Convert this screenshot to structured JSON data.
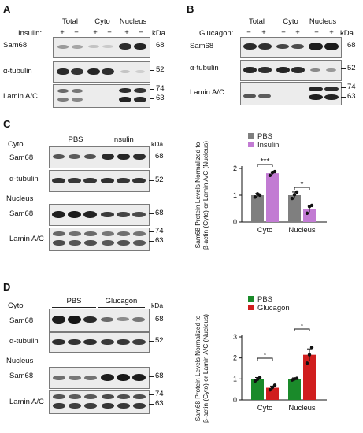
{
  "panels": {
    "A": {
      "letter": "A",
      "groups": [
        "Total",
        "Cyto",
        "Nucleus"
      ],
      "treatment_label": "Insulin:",
      "lane_signs": [
        "+",
        "−",
        "+",
        "−",
        "+",
        "−"
      ],
      "rows": [
        "Sam68",
        "α-tubulin",
        "Lamin A/C"
      ],
      "kda": "kDa",
      "markers": [
        "68",
        "52",
        "74",
        "63"
      ]
    },
    "B": {
      "letter": "B",
      "groups": [
        "Total",
        "Cyto",
        "Nucleus"
      ],
      "treatment_label": "Glucagon:",
      "lane_signs": [
        "−",
        "+",
        "−",
        "+",
        "−",
        "+"
      ],
      "rows": [
        "Sam68",
        "α-tubulin",
        "Lamin A/C"
      ],
      "kda": "kDa",
      "markers": [
        "68",
        "52",
        "74",
        "63"
      ]
    },
    "C": {
      "letter": "C",
      "fraction_cyto": "Cyto",
      "fraction_nucleus": "Nucleus",
      "groups": [
        "PBS",
        "Insulin"
      ],
      "rows_cyto": [
        "Sam68",
        "α-tubulin"
      ],
      "rows_nucleus": [
        "Sam68",
        "Lamin A/C"
      ],
      "kda": "kDa",
      "markers": [
        "68",
        "52",
        "68",
        "74",
        "63"
      ]
    },
    "D": {
      "letter": "D",
      "fraction_cyto": "Cyto",
      "fraction_nucleus": "Nucleus",
      "groups": [
        "PBS",
        "Glucagon"
      ],
      "rows_cyto": [
        "Sam68",
        "α-tubulin"
      ],
      "rows_nucleus": [
        "Sam68",
        "Lamin A/C"
      ],
      "kda": "kDa",
      "markers": [
        "68",
        "52",
        "68",
        "74",
        "63"
      ]
    }
  },
  "chart_data": [
    {
      "panel": "C",
      "type": "bar",
      "categories": [
        "Cyto",
        "Nucleus"
      ],
      "series": [
        {
          "name": "PBS",
          "color": "#7f7f7f",
          "values": [
            1.0,
            1.0
          ],
          "errors": [
            0.06,
            0.12
          ],
          "points": [
            [
              0.93,
              1.05,
              1.0
            ],
            [
              0.88,
              1.02,
              1.12
            ]
          ]
        },
        {
          "name": "Insulin",
          "color": "#c27bd3",
          "values": [
            1.82,
            0.5
          ],
          "errors": [
            0.05,
            0.13
          ],
          "points": [
            [
              1.74,
              1.85,
              1.88
            ],
            [
              0.33,
              0.58,
              0.62
            ]
          ]
        }
      ],
      "ylabel": "Sam68 Protein Levels Normalized to β-actin (Cyto) or Lamin A/C (Nucleus)",
      "ylabel_line1": "Sam68 Protein Levels Normalized to",
      "ylabel_line2": "β-actin (Cyto) or Lamin A/C (Nucleus)",
      "ylim": [
        0,
        2
      ],
      "yticks": [
        "0",
        "1",
        "2"
      ],
      "legend_position": "top",
      "significance": [
        "***",
        "*"
      ]
    },
    {
      "panel": "D",
      "type": "bar",
      "categories": [
        "Cyto",
        "Nucleus"
      ],
      "series": [
        {
          "name": "PBS",
          "color": "#1a8a2a",
          "values": [
            1.0,
            1.0
          ],
          "errors": [
            0.07,
            0.05
          ],
          "points": [
            [
              0.9,
              0.98,
              1.06
            ],
            [
              0.95,
              1.0,
              1.03
            ]
          ]
        },
        {
          "name": "Glucagon",
          "color": "#d01e1e",
          "values": [
            0.58,
            2.15
          ],
          "errors": [
            0.08,
            0.28
          ],
          "points": [
            [
              0.48,
              0.6,
              0.7
            ],
            [
              1.75,
              2.15,
              2.5
            ]
          ]
        }
      ],
      "ylabel": "Sam68 Protein Levels Normalized to β-actin (Cyto) or Lamin A/C (Nucleus)",
      "ylabel_line1": "Sam68 Protein Levels Normalized to",
      "ylabel_line2": "β-actin (Cyto) or Lamin A/C (Nucleus)",
      "ylim": [
        0,
        3
      ],
      "yticks": [
        "0",
        "1",
        "2",
        "3"
      ],
      "legend_position": "top",
      "significance": [
        "*",
        "*"
      ]
    }
  ]
}
